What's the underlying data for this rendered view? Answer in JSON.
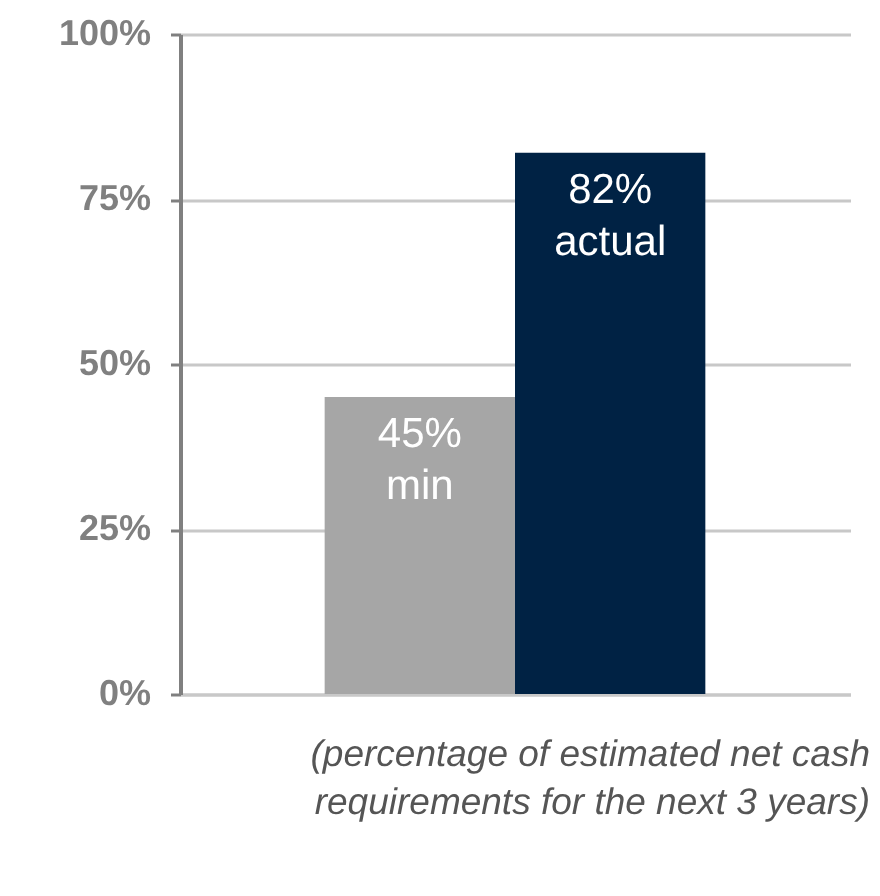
{
  "chart_data": {
    "type": "bar",
    "categories": [
      null,
      null
    ],
    "values": [
      45,
      82
    ],
    "colors": [
      "#a6a6a6",
      "#002244"
    ],
    "value_labels": [
      "45% min",
      "82% actual"
    ],
    "ylim": [
      0,
      100
    ],
    "yticks": [
      {
        "value": 0,
        "label": "0%"
      },
      {
        "value": 25,
        "label": "25%"
      },
      {
        "value": 50,
        "label": "50%"
      },
      {
        "value": 75,
        "label": "75%"
      },
      {
        "value": 100,
        "label": "100%"
      }
    ],
    "grid": "y",
    "annotations": [
      "(percentage of estimated net cash requirements for the next 3 years)"
    ]
  }
}
